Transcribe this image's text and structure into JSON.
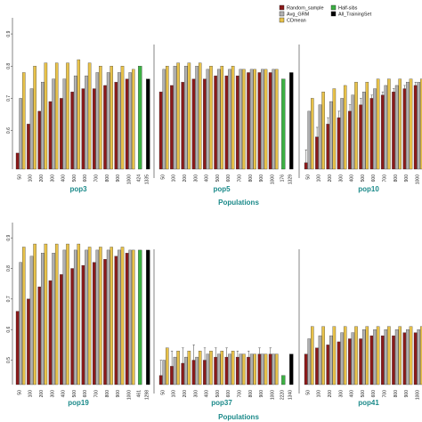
{
  "chart_data": {
    "type": "bar",
    "legend": {
      "placement": "top-right",
      "entries": [
        {
          "name": "Random_sample",
          "color": "#8b1a1a"
        },
        {
          "name": "Avg_GRM",
          "color": "#b0b0b0"
        },
        {
          "name": "CDmean",
          "color": "#e8c24a"
        },
        {
          "name": "Half-sibs",
          "color": "#3cb043"
        },
        {
          "name": "All_TrainingSet",
          "color": "#000000"
        }
      ]
    },
    "colors": {
      "Random_sample": "#8b1a1a",
      "Avg_GRM": "#b0b0b0",
      "CDmean": "#e8c24a",
      "Half-sibs": "#3cb043",
      "All_TrainingSet": "#000000",
      "pop_label": "#1b8a8a",
      "error_bar": "#444444"
    },
    "categories": [
      "50",
      "100",
      "200",
      "300",
      "400",
      "500",
      "600",
      "700",
      "800",
      "900",
      "1000"
    ],
    "y_tick_labels": {
      "top": [
        "0.9",
        "0.8",
        "0.7",
        "0.6"
      ],
      "bottom": [
        "0.9",
        "0.8",
        "0.7",
        "0.6",
        "0.5"
      ]
    },
    "xlabel": "Populations",
    "panels": [
      {
        "row": 0,
        "label": "pop3",
        "ylim": [
          0.48,
          0.95
        ],
        "series": [
          {
            "name": "Random_sample",
            "values": [
              0.53,
              0.62,
              0.66,
              0.69,
              0.7,
              0.72,
              0.73,
              0.73,
              0.74,
              0.75,
              0.76
            ]
          },
          {
            "name": "Avg_GRM",
            "values": [
              0.7,
              0.73,
              0.75,
              0.76,
              0.76,
              0.77,
              0.77,
              0.78,
              0.78,
              0.78,
              0.78
            ]
          },
          {
            "name": "CDmean",
            "values": [
              0.78,
              0.8,
              0.81,
              0.81,
              0.81,
              0.82,
              0.81,
              0.8,
              0.8,
              0.8,
              0.79
            ]
          }
        ],
        "extras": [
          {
            "name": "Half-sibs",
            "value": 0.8,
            "n_label": "424"
          },
          {
            "name": "All_TrainingSet",
            "value": 0.76,
            "n_label": "1335"
          }
        ]
      },
      {
        "row": 0,
        "label": "pop5",
        "ylim": [
          0.48,
          0.95
        ],
        "series": [
          {
            "name": "Random_sample",
            "values": [
              0.72,
              0.74,
              0.75,
              0.76,
              0.76,
              0.77,
              0.77,
              0.77,
              0.78,
              0.78,
              0.78
            ]
          },
          {
            "name": "Avg_GRM",
            "values": [
              0.79,
              0.8,
              0.8,
              0.8,
              0.79,
              0.79,
              0.79,
              0.79,
              0.79,
              0.79,
              0.79
            ]
          },
          {
            "name": "CDmean",
            "values": [
              0.8,
              0.81,
              0.81,
              0.81,
              0.8,
              0.8,
              0.8,
              0.79,
              0.79,
              0.79,
              0.79
            ]
          }
        ],
        "extras": [
          {
            "name": "Half-sibs",
            "value": 0.76,
            "n_label": "176"
          },
          {
            "name": "All_TrainingSet",
            "value": 0.78,
            "n_label": "1329"
          }
        ]
      },
      {
        "row": 0,
        "label": "pop10",
        "ylim": [
          0.48,
          0.95
        ],
        "series": [
          {
            "name": "Random_sample",
            "values": [
              0.5,
              0.58,
              0.62,
              0.64,
              0.66,
              0.68,
              0.7,
              0.71,
              0.72,
              0.73,
              0.74
            ]
          },
          {
            "name": "Avg_GRM",
            "values": [
              0.66,
              0.68,
              0.69,
              0.7,
              0.71,
              0.72,
              0.73,
              0.74,
              0.74,
              0.75,
              0.75
            ]
          },
          {
            "name": "CDmean",
            "values": [
              0.7,
              0.72,
              0.73,
              0.74,
              0.75,
              0.75,
              0.76,
              0.76,
              0.76,
              0.76,
              0.76
            ]
          }
        ],
        "errors": [
          0.04,
          0.03,
          0.02,
          0.02,
          0.02,
          0.02,
          0.01,
          0.01,
          0.01,
          0.01,
          0.01
        ],
        "extras": []
      },
      {
        "row": 1,
        "label": "pop19",
        "ylim": [
          0.42,
          0.95
        ],
        "series": [
          {
            "name": "Random_sample",
            "values": [
              0.66,
              0.7,
              0.74,
              0.76,
              0.78,
              0.8,
              0.81,
              0.82,
              0.83,
              0.84,
              0.85
            ]
          },
          {
            "name": "Avg_GRM",
            "values": [
              0.82,
              0.84,
              0.85,
              0.85,
              0.86,
              0.86,
              0.86,
              0.86,
              0.86,
              0.86,
              0.86
            ]
          },
          {
            "name": "CDmean",
            "values": [
              0.87,
              0.88,
              0.88,
              0.88,
              0.88,
              0.88,
              0.87,
              0.87,
              0.87,
              0.87,
              0.86
            ]
          }
        ],
        "extras": [
          {
            "name": "Half-sibs",
            "value": 0.86,
            "n_label": "461"
          },
          {
            "name": "All_TrainingSet",
            "value": 0.86,
            "n_label": "1298"
          }
        ]
      },
      {
        "row": 1,
        "label": "pop37",
        "ylim": [
          0.42,
          0.95
        ],
        "series": [
          {
            "name": "Random_sample",
            "values": [
              0.45,
              0.48,
              0.49,
              0.5,
              0.5,
              0.51,
              0.51,
              0.51,
              0.51,
              0.52,
              0.52
            ]
          },
          {
            "name": "Avg_GRM",
            "values": [
              0.5,
              0.51,
              0.51,
              0.51,
              0.52,
              0.52,
              0.52,
              0.52,
              0.52,
              0.52,
              0.52
            ]
          },
          {
            "name": "CDmean",
            "values": [
              0.54,
              0.53,
              0.53,
              0.53,
              0.53,
              0.53,
              0.53,
              0.52,
              0.52,
              0.52,
              0.52
            ]
          }
        ],
        "errors": [
          0.05,
          0.05,
          0.05,
          0.05,
          0.04,
          0.03,
          0.03,
          0.02,
          0.02,
          0.02,
          0.02
        ],
        "extras": [
          {
            "name": "Half-sibs",
            "value": 0.45,
            "n_label": "2220"
          },
          {
            "name": "All_TrainingSet",
            "value": 0.52,
            "n_label": "1340"
          }
        ]
      },
      {
        "row": 1,
        "label": "pop41",
        "ylim": [
          0.42,
          0.95
        ],
        "series": [
          {
            "name": "Random_sample",
            "values": [
              0.52,
              0.54,
              0.55,
              0.56,
              0.57,
              0.57,
              0.58,
              0.58,
              0.58,
              0.59,
              0.59
            ]
          },
          {
            "name": "Avg_GRM",
            "values": [
              0.57,
              0.58,
              0.58,
              0.59,
              0.59,
              0.6,
              0.6,
              0.6,
              0.6,
              0.6,
              0.6
            ]
          },
          {
            "name": "CDmean",
            "values": [
              0.61,
              0.61,
              0.61,
              0.61,
              0.61,
              0.61,
              0.61,
              0.61,
              0.61,
              0.61,
              0.61
            ]
          }
        ],
        "extras": []
      }
    ]
  }
}
